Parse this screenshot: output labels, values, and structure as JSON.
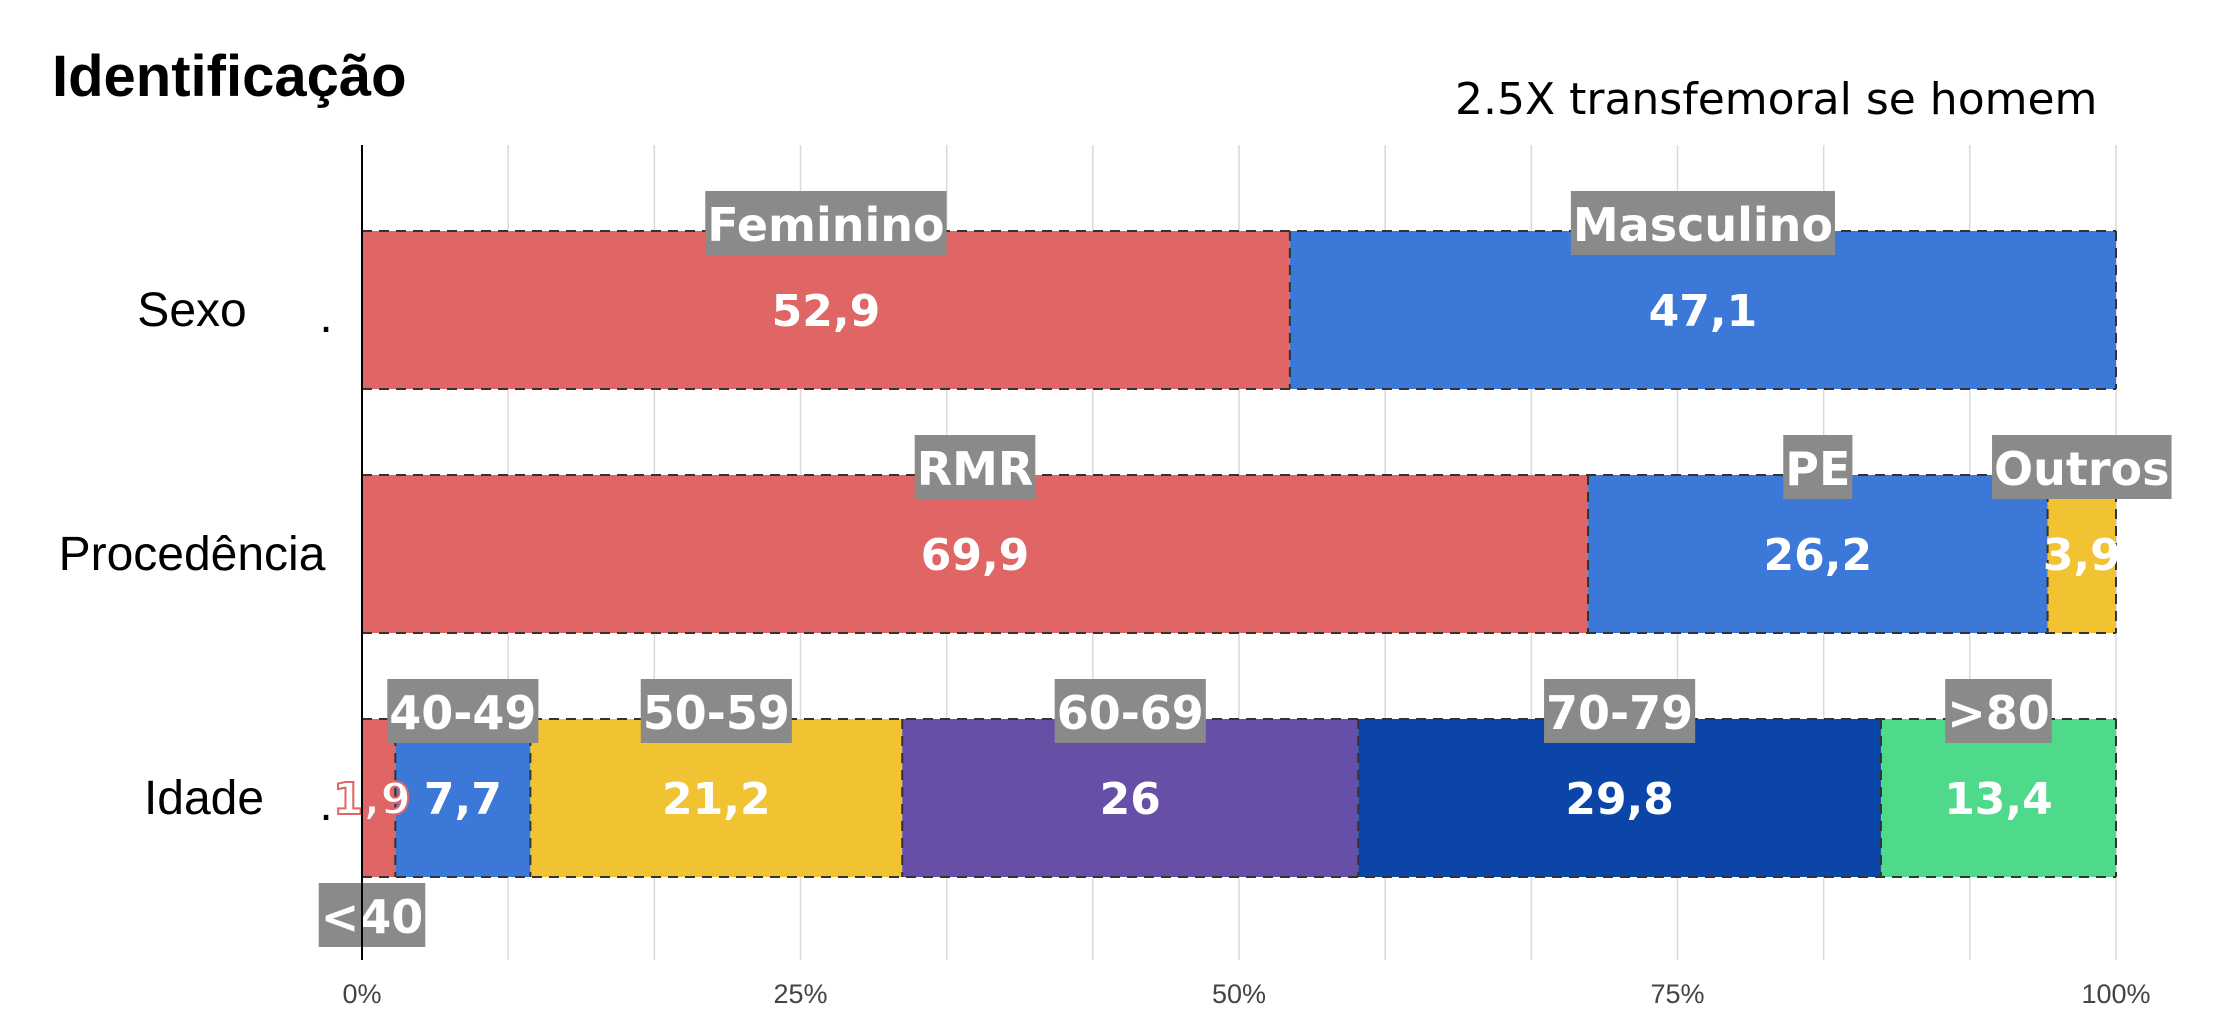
{
  "chart_data": {
    "type": "bar",
    "orientation": "horizontal",
    "stacked": "percent",
    "title": "Identificação",
    "annotation": "2.5X transfemoral se homem",
    "categories": [
      "Sexo",
      "Procedência",
      "Idade"
    ],
    "category_suffix": ".",
    "xlim": [
      0,
      100
    ],
    "x_ticks": [
      "0%",
      "25%",
      "50%",
      "75%",
      "100%"
    ],
    "grid": true,
    "rows": [
      {
        "category": "Sexo",
        "segments": [
          {
            "label": "Feminino",
            "value": 52.9,
            "display": "52,9",
            "color": "#e06666"
          },
          {
            "label": "Masculino",
            "value": 47.1,
            "display": "47,1",
            "color": "#3c78d8"
          }
        ]
      },
      {
        "category": "Procedência",
        "segments": [
          {
            "label": "RMR",
            "value": 69.9,
            "display": "69,9",
            "color": "#e06666"
          },
          {
            "label": "PE",
            "value": 26.2,
            "display": "26,2",
            "color": "#3c78d8"
          },
          {
            "label": "Outros",
            "value": 3.9,
            "display": "3,9",
            "color": "#f1c232"
          }
        ]
      },
      {
        "category": "Idade",
        "segments": [
          {
            "label": "<40",
            "value": 1.9,
            "display": "1,9",
            "color": "#e06666"
          },
          {
            "label": "40-49",
            "value": 7.7,
            "display": "7,7",
            "color": "#3c78d8"
          },
          {
            "label": "50-59",
            "value": 21.2,
            "display": "21,2",
            "color": "#f1c232"
          },
          {
            "label": "60-69",
            "value": 26,
            "display": "26",
            "color": "#674ea7"
          },
          {
            "label": "70-79",
            "value": 29.8,
            "display": "29,8",
            "color": "#0b45a8"
          },
          {
            "label": ">80",
            "value": 13.4,
            "display": "13,4",
            "color": "#4fd98a"
          }
        ]
      }
    ]
  }
}
